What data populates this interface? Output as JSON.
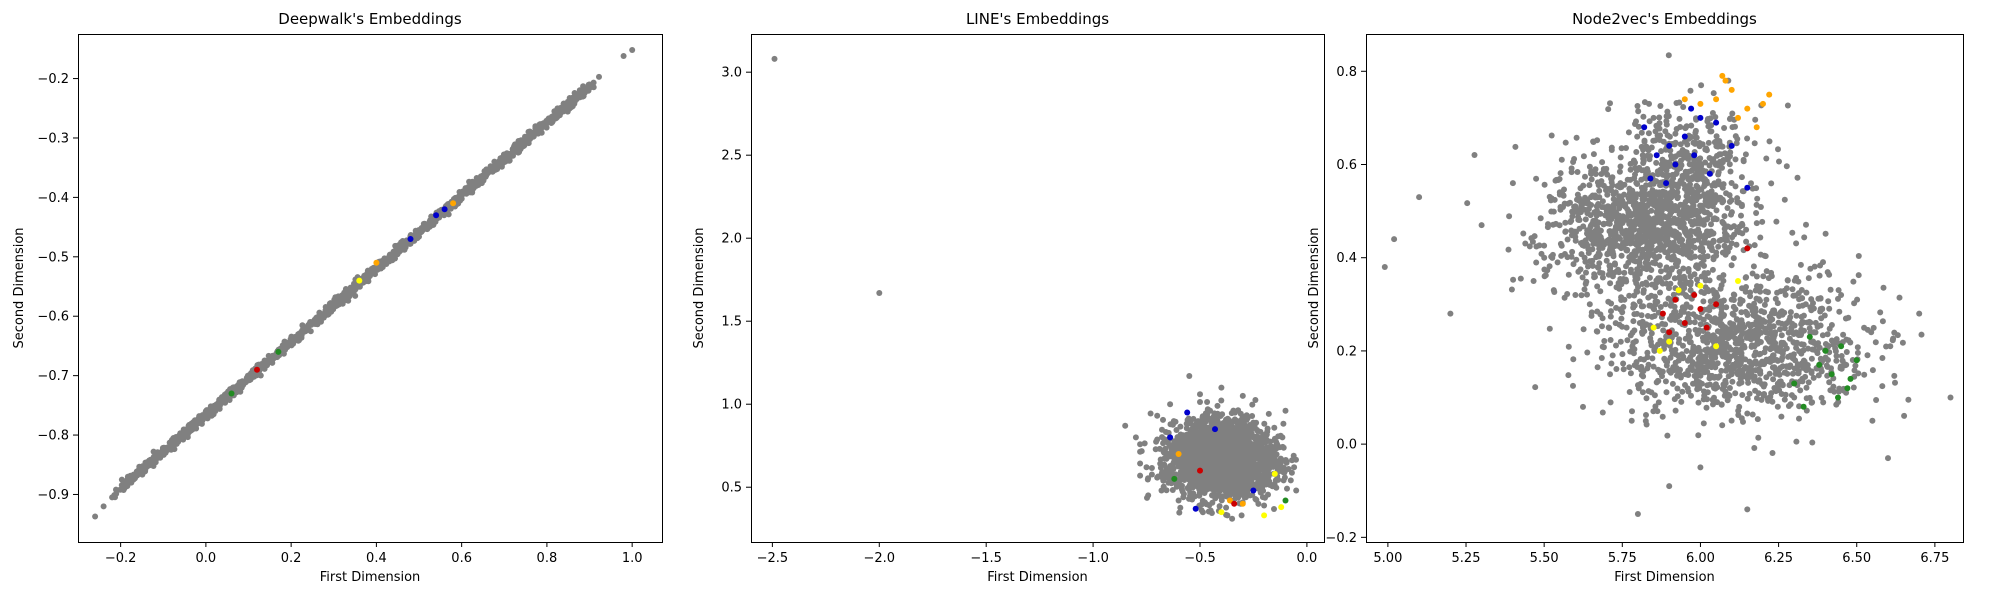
{
  "chart_data": [
    {
      "type": "scatter",
      "title": "Deepwalk's Embeddings",
      "xlabel": "First Dimension",
      "ylabel": "Second Dimension",
      "xlim": [
        -0.3,
        1.07
      ],
      "ylim": [
        -0.98,
        -0.125
      ],
      "xticks": [
        -0.2,
        0.0,
        0.2,
        0.4,
        0.6,
        0.8,
        1.0
      ],
      "xtick_labels": [
        "−0.2",
        "0.0",
        "0.2",
        "0.4",
        "0.6",
        "0.8",
        "1.0"
      ],
      "yticks": [
        -0.9,
        -0.8,
        -0.7,
        -0.6,
        -0.5,
        -0.4,
        -0.3,
        -0.2
      ],
      "ytick_labels": [
        "−0.9",
        "−0.8",
        "−0.7",
        "−0.6",
        "−0.5",
        "−0.4",
        "−0.3",
        "−0.2"
      ],
      "series": [
        {
          "color": "#808080",
          "points": [
            [
              -0.26,
              -0.937
            ],
            [
              -0.24,
              -0.92
            ],
            [
              -0.22,
              -0.905
            ],
            [
              -0.17,
              -0.875
            ],
            [
              -0.13,
              -0.848
            ],
            [
              -0.1,
              -0.83
            ],
            [
              -0.07,
              -0.81
            ],
            [
              -0.04,
              -0.79
            ],
            [
              -0.02,
              -0.775
            ],
            [
              0.0,
              -0.76
            ],
            [
              0.03,
              -0.745
            ],
            [
              0.06,
              -0.725
            ],
            [
              0.09,
              -0.71
            ],
            [
              0.12,
              -0.69
            ],
            [
              0.15,
              -0.67
            ],
            [
              0.18,
              -0.655
            ],
            [
              0.21,
              -0.635
            ],
            [
              0.24,
              -0.615
            ],
            [
              0.27,
              -0.6
            ],
            [
              0.3,
              -0.58
            ],
            [
              0.33,
              -0.56
            ],
            [
              0.36,
              -0.545
            ],
            [
              0.39,
              -0.525
            ],
            [
              0.42,
              -0.505
            ],
            [
              0.45,
              -0.49
            ],
            [
              0.48,
              -0.47
            ],
            [
              0.51,
              -0.45
            ],
            [
              0.54,
              -0.435
            ],
            [
              0.57,
              -0.415
            ],
            [
              0.6,
              -0.395
            ],
            [
              0.63,
              -0.38
            ],
            [
              0.66,
              -0.36
            ],
            [
              0.69,
              -0.34
            ],
            [
              0.72,
              -0.325
            ],
            [
              0.75,
              -0.305
            ],
            [
              0.78,
              -0.285
            ],
            [
              0.81,
              -0.27
            ],
            [
              0.84,
              -0.25
            ],
            [
              0.87,
              -0.23
            ],
            [
              0.9,
              -0.21
            ],
            [
              0.98,
              -0.162
            ],
            [
              1.0,
              -0.152
            ]
          ]
        },
        {
          "color": "#0000cc",
          "points": [
            [
              0.48,
              -0.47
            ],
            [
              0.54,
              -0.43
            ],
            [
              0.56,
              -0.42
            ]
          ]
        },
        {
          "color": "#ffa500",
          "points": [
            [
              0.4,
              -0.51
            ],
            [
              0.58,
              -0.41
            ]
          ]
        },
        {
          "color": "#cc0000",
          "points": [
            [
              0.12,
              -0.69
            ]
          ]
        },
        {
          "color": "#228b22",
          "points": [
            [
              0.17,
              -0.66
            ],
            [
              0.06,
              -0.73
            ]
          ]
        },
        {
          "color": "#ffff00",
          "points": [
            [
              0.36,
              -0.54
            ]
          ]
        }
      ]
    },
    {
      "type": "scatter",
      "title": "LINE's Embeddings",
      "xlabel": "First Dimension",
      "ylabel": "Second Dimension",
      "xlim": [
        -2.6,
        0.08
      ],
      "ylim": [
        0.17,
        3.23
      ],
      "xticks": [
        -2.5,
        -2.0,
        -1.5,
        -1.0,
        -0.5,
        0.0
      ],
      "xtick_labels": [
        "−2.5",
        "−2.0",
        "−1.5",
        "−1.0",
        "−0.5",
        "0.0"
      ],
      "yticks": [
        0.5,
        1.0,
        1.5,
        2.0,
        2.5,
        3.0
      ],
      "ytick_labels": [
        "0.5",
        "1.0",
        "1.5",
        "2.0",
        "2.5",
        "3.0"
      ],
      "series": [
        {
          "color": "#808080",
          "points": [
            [
              -2.49,
              3.08
            ],
            [
              -2.0,
              1.67
            ],
            [
              -0.85,
              0.87
            ],
            [
              -0.8,
              0.8
            ],
            [
              -0.75,
              0.62
            ],
            [
              -0.7,
              0.93
            ],
            [
              -0.68,
              0.48
            ],
            [
              -0.64,
              1.0
            ],
            [
              -0.6,
              0.42
            ],
            [
              -0.55,
              1.17
            ],
            [
              -0.5,
              1.06
            ],
            [
              -0.45,
              0.36
            ],
            [
              -0.4,
              1.1
            ],
            [
              -0.35,
              0.31
            ],
            [
              -0.3,
              1.05
            ],
            [
              -0.2,
              0.39
            ],
            [
              -0.1,
              0.96
            ],
            [
              -0.06,
              0.62
            ],
            [
              -0.05,
              0.48
            ]
          ]
        },
        {
          "color": "#0000cc",
          "points": [
            [
              -0.56,
              0.95
            ],
            [
              -0.64,
              0.8
            ],
            [
              -0.52,
              0.37
            ],
            [
              -0.25,
              0.48
            ],
            [
              -0.43,
              0.85
            ]
          ]
        },
        {
          "color": "#ffa500",
          "points": [
            [
              -0.6,
              0.7
            ],
            [
              -0.3,
              0.4
            ],
            [
              -0.36,
              0.42
            ]
          ]
        },
        {
          "color": "#cc0000",
          "points": [
            [
              -0.34,
              0.4
            ],
            [
              -0.5,
              0.6
            ]
          ]
        },
        {
          "color": "#ffff00",
          "points": [
            [
              -0.4,
              0.35
            ],
            [
              -0.12,
              0.38
            ],
            [
              -0.15,
              0.58
            ],
            [
              -0.2,
              0.33
            ]
          ]
        },
        {
          "color": "#228b22",
          "points": [
            [
              -0.1,
              0.42
            ],
            [
              -0.62,
              0.55
            ]
          ]
        }
      ]
    },
    {
      "type": "scatter",
      "title": "Node2vec's Embeddings",
      "xlabel": "First Dimension",
      "ylabel": "Second Dimension",
      "xlim": [
        4.93,
        6.84
      ],
      "ylim": [
        -0.21,
        0.88
      ],
      "xticks": [
        5.0,
        5.25,
        5.5,
        5.75,
        6.0,
        6.25,
        6.5,
        6.75
      ],
      "xtick_labels": [
        "5.00",
        "5.25",
        "5.50",
        "5.75",
        "6.00",
        "6.25",
        "6.50",
        "6.75"
      ],
      "yticks": [
        -0.2,
        0.0,
        0.2,
        0.4,
        0.6,
        0.8
      ],
      "ytick_labels": [
        "−0.2",
        "0.0",
        "0.2",
        "0.4",
        "0.6",
        "0.8"
      ],
      "series": [
        {
          "color": "#808080",
          "points": [
            [
              4.99,
              0.38
            ],
            [
              5.02,
              0.44
            ],
            [
              5.1,
              0.53
            ],
            [
              5.2,
              0.28
            ],
            [
              5.3,
              0.47
            ],
            [
              5.4,
              0.56
            ],
            [
              5.5,
              0.4
            ],
            [
              5.6,
              0.32
            ],
            [
              5.65,
              0.58
            ],
            [
              5.7,
              0.5
            ],
            [
              5.78,
              0.05
            ],
            [
              5.8,
              -0.15
            ],
            [
              5.85,
              0.7
            ],
            [
              5.9,
              -0.09
            ],
            [
              6.0,
              -0.05
            ],
            [
              6.1,
              0.15
            ],
            [
              6.15,
              -0.14
            ],
            [
              6.3,
              0.1
            ],
            [
              6.45,
              0.32
            ],
            [
              6.55,
              0.05
            ],
            [
              6.6,
              -0.03
            ],
            [
              6.7,
              0.28
            ],
            [
              6.8,
              0.1
            ]
          ]
        },
        {
          "color": "#0000cc",
          "points": [
            [
              5.82,
              0.68
            ],
            [
              5.86,
              0.62
            ],
            [
              5.9,
              0.64
            ],
            [
              5.92,
              0.6
            ],
            [
              5.95,
              0.66
            ],
            [
              5.98,
              0.62
            ],
            [
              6.0,
              0.7
            ],
            [
              6.03,
              0.58
            ],
            [
              6.05,
              0.69
            ],
            [
              5.84,
              0.57
            ],
            [
              5.97,
              0.72
            ],
            [
              6.1,
              0.64
            ],
            [
              6.15,
              0.55
            ],
            [
              5.89,
              0.56
            ]
          ]
        },
        {
          "color": "#ffa500",
          "points": [
            [
              6.0,
              0.73
            ],
            [
              6.05,
              0.74
            ],
            [
              6.08,
              0.78
            ],
            [
              6.1,
              0.76
            ],
            [
              6.15,
              0.72
            ],
            [
              6.18,
              0.68
            ],
            [
              6.2,
              0.73
            ],
            [
              6.22,
              0.75
            ],
            [
              6.12,
              0.7
            ],
            [
              6.07,
              0.79
            ],
            [
              5.95,
              0.74
            ]
          ]
        },
        {
          "color": "#cc0000",
          "points": [
            [
              5.88,
              0.28
            ],
            [
              5.92,
              0.31
            ],
            [
              5.95,
              0.26
            ],
            [
              5.98,
              0.32
            ],
            [
              6.0,
              0.29
            ],
            [
              6.05,
              0.3
            ],
            [
              5.9,
              0.24
            ],
            [
              6.02,
              0.25
            ],
            [
              6.15,
              0.42
            ]
          ]
        },
        {
          "color": "#ffff00",
          "points": [
            [
              5.85,
              0.25
            ],
            [
              5.9,
              0.22
            ],
            [
              5.93,
              0.33
            ],
            [
              6.0,
              0.34
            ],
            [
              6.05,
              0.21
            ],
            [
              6.12,
              0.35
            ],
            [
              5.87,
              0.2
            ]
          ]
        },
        {
          "color": "#228b22",
          "points": [
            [
              6.35,
              0.23
            ],
            [
              6.4,
              0.2
            ],
            [
              6.42,
              0.15
            ],
            [
              6.45,
              0.21
            ],
            [
              6.47,
              0.12
            ],
            [
              6.5,
              0.18
            ],
            [
              6.3,
              0.13
            ],
            [
              6.33,
              0.08
            ],
            [
              6.44,
              0.1
            ],
            [
              6.38,
              0.17
            ],
            [
              6.48,
              0.14
            ]
          ]
        }
      ]
    }
  ]
}
